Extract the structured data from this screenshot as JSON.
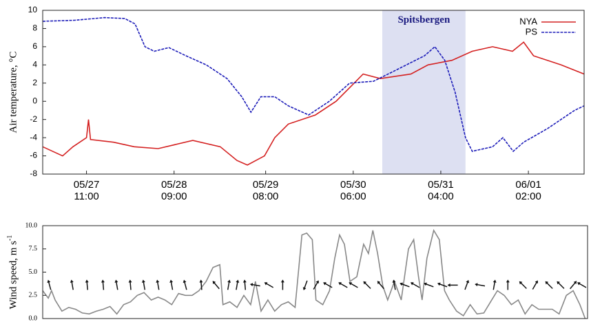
{
  "chart_data": [
    {
      "type": "line",
      "ylabel": "Air temperature, °C",
      "xlim": [
        0,
        136
      ],
      "ylim": [
        -8,
        10
      ],
      "yticks": [
        -8,
        -6,
        -4,
        -2,
        0,
        2,
        4,
        6,
        8,
        10
      ],
      "xticks": [
        {
          "value": 11,
          "label": "05/27 11:00"
        },
        {
          "value": 33,
          "label": "05/28 09:00"
        },
        {
          "value": 56,
          "label": "05/29 08:00"
        },
        {
          "value": 78,
          "label": "05/30 06:00"
        },
        {
          "value": 100,
          "label": "05/31 04:00"
        },
        {
          "value": 122,
          "label": "06/01 02:00"
        }
      ],
      "highlight": {
        "x": [
          85.3,
          106.2
        ],
        "label": "Spitsbergen",
        "color": "#dde0f2"
      },
      "legend": "upper right",
      "series": [
        {
          "name": "NYA",
          "color": "#d42020",
          "style": "solid",
          "x": [
            0,
            5,
            7.6,
            11,
            11.5,
            12,
            17.8,
            23,
            29,
            37.7,
            44.6,
            48.8,
            51.4,
            55.7,
            58.3,
            61.7,
            68.5,
            73.7,
            77.1,
            80.5,
            84.8,
            92.5,
            96.8,
            102.8,
            107.9,
            113,
            118,
            120.8,
            123.3,
            130.2,
            136
          ],
          "values": [
            -5,
            -6,
            -5,
            -4,
            -2,
            -4.2,
            -4.5,
            -5,
            -5.2,
            -4.3,
            -5,
            -6.5,
            -7,
            -6,
            -4,
            -2.5,
            -1.5,
            0,
            1.5,
            3,
            2.5,
            3,
            4,
            4.5,
            5.5,
            6,
            5.5,
            6.5,
            5,
            4,
            3
          ]
        },
        {
          "name": "PS",
          "color": "#1a1ab8",
          "style": "dashed",
          "x": [
            0,
            8,
            15.5,
            20.6,
            23.2,
            25.7,
            28,
            31.7,
            36,
            41.1,
            46.3,
            50,
            52.3,
            54.8,
            58.3,
            61.7,
            66.8,
            72,
            77.1,
            83.1,
            89.1,
            95.9,
            98.5,
            101,
            103.6,
            106.2,
            107.9,
            113,
            115.6,
            118.2,
            120.8,
            126.8,
            133.6,
            136
          ],
          "values": [
            8.8,
            8.9,
            9.2,
            9.1,
            8.5,
            6,
            5.5,
            5.9,
            5,
            4,
            2.5,
            0.5,
            -1.2,
            0.5,
            0.5,
            -0.5,
            -1.5,
            0,
            2,
            2.2,
            3.5,
            5,
            6,
            4.5,
            1,
            -4,
            -5.5,
            -5,
            -4,
            -5.5,
            -4.5,
            -3,
            -1,
            -0.5
          ]
        }
      ]
    },
    {
      "type": "line",
      "ylabel": "Wind speed, m s",
      "ylabel_superscript": "-1",
      "xlim": [
        0,
        136
      ],
      "ylim": [
        0,
        10
      ],
      "yticks": [
        {
          "value": 0,
          "label": "0.0"
        },
        {
          "value": 2.5,
          "label": "2.5"
        },
        {
          "value": 5,
          "label": "5.0"
        },
        {
          "value": 7.5,
          "label": "7.5"
        },
        {
          "value": 10,
          "label": "10.0"
        }
      ],
      "series": [
        {
          "color": "#888888",
          "style": "solid",
          "x": [
            0,
            1.4,
            2.2,
            3.1,
            4.8,
            6.5,
            8.2,
            9.9,
            11.6,
            13.4,
            15.1,
            16.8,
            18.5,
            20.2,
            21.9,
            23.6,
            25.3,
            27.1,
            28.8,
            30.5,
            32.2,
            33.9,
            35.6,
            37.3,
            39,
            40.8,
            42.5,
            44.2,
            45,
            46.7,
            48.5,
            50.2,
            51.9,
            53.1,
            54.5,
            56.2,
            57.9,
            59.6,
            61.3,
            63,
            64.7,
            65.9,
            67.3,
            68.2,
            69.9,
            71.6,
            72.9,
            74.1,
            75.3,
            76.7,
            78.4,
            80.1,
            81.3,
            82.4,
            83.6,
            84.9,
            86.1,
            87.8,
            89.5,
            91.3,
            92.6,
            93.8,
            94.7,
            95.9,
            97.6,
            99,
            100.3,
            101.5,
            103.3,
            105,
            106.7,
            108.4,
            110.1,
            111.8,
            113.5,
            115.2,
            117,
            118.7,
            120.4,
            122.1,
            123.8,
            125.5,
            127.2,
            128.9,
            130.7,
            132.4,
            134.1,
            135.4
          ],
          "values": [
            3,
            2.2,
            3,
            2,
            0.8,
            1.2,
            1,
            0.6,
            0.5,
            0.8,
            1,
            1.3,
            0.5,
            1.5,
            1.8,
            2.5,
            2.8,
            2,
            2.3,
            2,
            1.5,
            2.7,
            2.5,
            2.5,
            3,
            4,
            5.5,
            5.8,
            1.5,
            1.8,
            1.2,
            2.5,
            1.5,
            4,
            0.8,
            2,
            0.8,
            1.5,
            1.8,
            1.2,
            9,
            9.2,
            8.5,
            2,
            1.5,
            3,
            6.5,
            9,
            8,
            4,
            4.5,
            8,
            7,
            9.5,
            7,
            3.5,
            2,
            4,
            2,
            7.5,
            8.5,
            4.5,
            2,
            6.5,
            9.5,
            8.5,
            3,
            2,
            0.8,
            0.3,
            1.5,
            0.5,
            0.6,
            1.8,
            3,
            2.5,
            1.5,
            2,
            0.5,
            1.5,
            1,
            1,
            1,
            0.5,
            2.5,
            3,
            1.5,
            0
          ]
        }
      ],
      "arrows": {
        "color": "#111111",
        "x": [
          1.7,
          7.4,
          11.1,
          15.1,
          18.5,
          21.9,
          25.3,
          28.8,
          32.2,
          35.6,
          39.6,
          43.3,
          46.4,
          48.5,
          50.5,
          53.1,
          56.5,
          59.9,
          65.6,
          68.2,
          71.2,
          75,
          77.6,
          81,
          84.4,
          87.8,
          90.4,
          93,
          96.4,
          99.8,
          102.4,
          105.8,
          109.2,
          112.7,
          116.1,
          119.9,
          122.9,
          126.4,
          129.3,
          132.4,
          134.6
        ],
        "direction": [
          -15,
          -10,
          -5,
          -5,
          -10,
          -5,
          -10,
          -10,
          -10,
          -15,
          -5,
          -40,
          10,
          10,
          -5,
          -80,
          -60,
          0,
          200,
          30,
          -60,
          -60,
          -60,
          -45,
          -40,
          -10,
          -70,
          -60,
          -70,
          -70,
          -90,
          20,
          -80,
          10,
          0,
          -45,
          30,
          -45,
          -45,
          40,
          -60
        ]
      }
    }
  ]
}
